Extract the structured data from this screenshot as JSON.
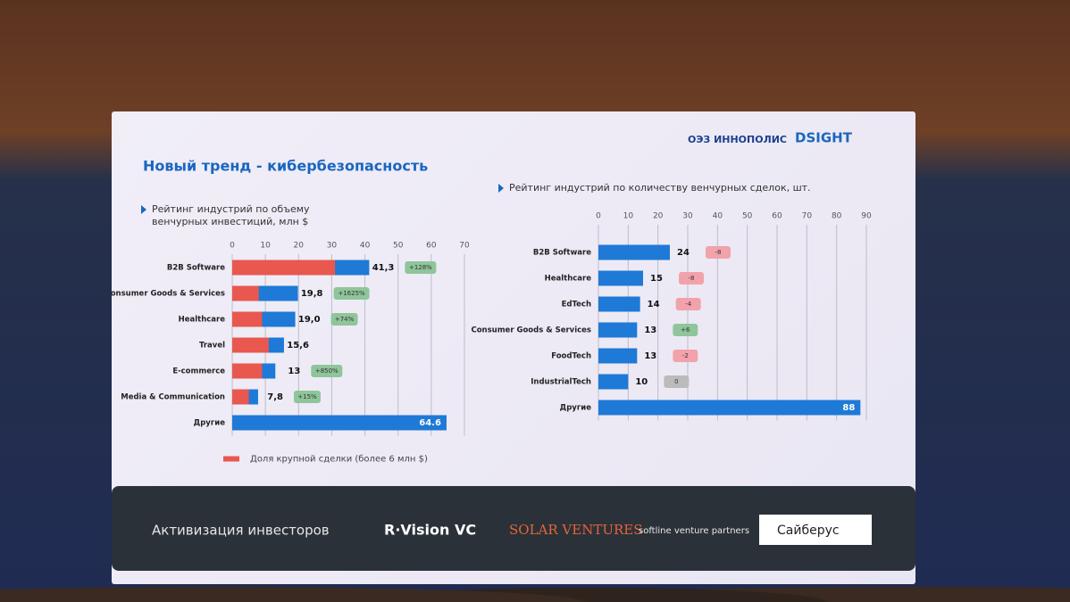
{
  "slide": {
    "title": "Новый тренд - кибербезопасность",
    "logos": [
      "ОЭЗ ИННОПОЛИС",
      "DSIGHT"
    ],
    "footer": {
      "label": "Активизация инвесторов",
      "investors": [
        "R·Vision VC",
        "SOLAR VENTURES",
        "softline venture partners",
        "Сайберус"
      ]
    }
  },
  "chart_data": [
    {
      "type": "bar",
      "orientation": "horizontal",
      "title": "Рейтинг индустрий по объему венчурных инвестиций, млн $",
      "categories": [
        "B2B Software",
        "Consumer Goods & Services",
        "Healthcare",
        "Travel",
        "E-commerce",
        "Media & Communication",
        "Другие"
      ],
      "values": [
        41.3,
        19.8,
        19.0,
        15.6,
        13,
        7.8,
        64.6
      ],
      "value_labels": [
        "41,3",
        "19,8",
        "19,0",
        "15,6",
        "13",
        "7,8",
        "64.6"
      ],
      "color": "#1e7ad6",
      "highlight": {
        "name": "Доля крупной сделки (более 6 млн $)",
        "color": "#e8584f",
        "values": [
          31,
          8,
          9,
          11,
          9,
          5,
          null
        ]
      },
      "badges": [
        "+128%",
        "+1625%",
        "+74%",
        null,
        "+850%",
        "+15%",
        null
      ],
      "xlim": [
        0,
        70
      ],
      "xticks": [
        0,
        10,
        20,
        30,
        40,
        50,
        60,
        70
      ],
      "grid": true
    },
    {
      "type": "bar",
      "orientation": "horizontal",
      "title": "Рейтинг индустрий по количеству венчурных сделок, шт.",
      "categories": [
        "B2B Software",
        "Healthcare",
        "EdTech",
        "Consumer Goods & Services",
        "FoodTech",
        "IndustrialTech",
        "Другие"
      ],
      "values": [
        24,
        15,
        14,
        13,
        13,
        10,
        88
      ],
      "color": "#1e7ad6",
      "badges": [
        "-8",
        "-8",
        "-4",
        "+6",
        "-2",
        "0",
        null
      ],
      "xlim": [
        0,
        90
      ],
      "xticks": [
        0,
        10,
        20,
        30,
        40,
        50,
        60,
        70,
        80,
        90
      ],
      "grid": true
    }
  ]
}
